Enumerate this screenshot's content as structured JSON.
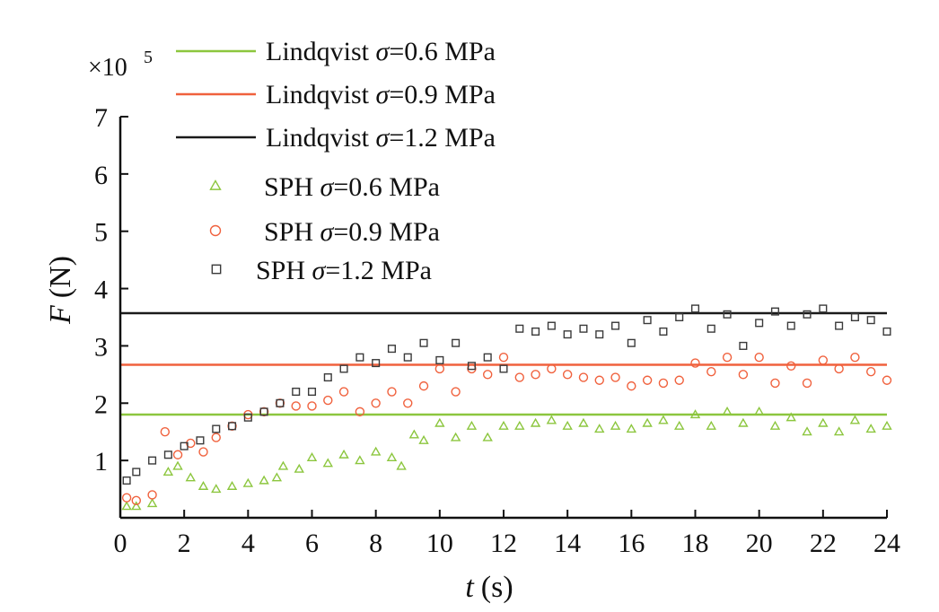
{
  "chart_data": {
    "type": "scatter",
    "xlabel": {
      "symbol": "t",
      "unit": "(s)"
    },
    "ylabel": {
      "symbol": "F",
      "unit": "(N)"
    },
    "y_multiplier": {
      "base": "×10",
      "exp": "5"
    },
    "xlim": [
      0,
      24
    ],
    "ylim": [
      0,
      7
    ],
    "x_ticks": [
      0,
      2,
      4,
      6,
      8,
      10,
      12,
      14,
      16,
      18,
      20,
      22,
      24
    ],
    "y_ticks": [
      1,
      2,
      3,
      4,
      5,
      6,
      7
    ],
    "y_unit_scale": 100000,
    "grid": false,
    "legend_position": "top-left",
    "lines": [
      {
        "label": {
          "prefix": "Lindqvist ",
          "sym": "σ",
          "rest": "=0.6  MPa"
        },
        "color": "#8cc63e",
        "y": 1.8
      },
      {
        "label": {
          "prefix": "Lindqvist ",
          "sym": "σ",
          "rest": "=0.9  MPa"
        },
        "color": "#f0613d",
        "y": 2.67
      },
      {
        "label": {
          "prefix": "Lindqvist ",
          "sym": "σ",
          "rest": "=1.2  MPa"
        },
        "color": "#1a1a1a",
        "y": 3.57
      }
    ],
    "series": [
      {
        "label": {
          "prefix": "SPH ",
          "sym": "σ",
          "rest": "=0.6 MPa"
        },
        "marker": "triangle",
        "color": "#8cc63e",
        "x": [
          0.2,
          0.5,
          1.0,
          1.5,
          1.8,
          2.2,
          2.6,
          3.0,
          3.5,
          4.0,
          4.5,
          4.9,
          5.1,
          5.6,
          6.0,
          6.5,
          7.0,
          7.5,
          8.0,
          8.5,
          8.8,
          9.2,
          9.5,
          10.0,
          10.5,
          11.0,
          11.5,
          12.0,
          12.5,
          13.0,
          13.5,
          14.0,
          14.5,
          15.0,
          15.5,
          16.0,
          16.5,
          17.0,
          17.5,
          18.0,
          18.5,
          19.0,
          19.5,
          20.0,
          20.5,
          21.0,
          21.5,
          22.0,
          22.5,
          23.0,
          23.5,
          24.0
        ],
        "y": [
          0.2,
          0.2,
          0.25,
          0.8,
          0.9,
          0.7,
          0.55,
          0.5,
          0.55,
          0.6,
          0.65,
          0.7,
          0.9,
          0.85,
          1.05,
          0.95,
          1.1,
          1.0,
          1.15,
          1.05,
          0.9,
          1.45,
          1.35,
          1.65,
          1.4,
          1.6,
          1.4,
          1.6,
          1.6,
          1.65,
          1.7,
          1.6,
          1.65,
          1.55,
          1.6,
          1.55,
          1.65,
          1.7,
          1.6,
          1.8,
          1.6,
          1.85,
          1.65,
          1.85,
          1.6,
          1.75,
          1.5,
          1.65,
          1.5,
          1.7,
          1.55,
          1.6
        ]
      },
      {
        "label": {
          "prefix": "SPH ",
          "sym": "σ",
          "rest": "=0.9 MPa"
        },
        "marker": "circle",
        "color": "#f0613d",
        "x": [
          0.2,
          0.5,
          1.0,
          1.4,
          1.8,
          2.2,
          2.6,
          3.0,
          3.5,
          4.0,
          4.5,
          5.0,
          5.5,
          6.0,
          6.5,
          7.0,
          7.5,
          8.0,
          8.5,
          9.0,
          9.5,
          10.0,
          10.5,
          11.0,
          11.5,
          12.0,
          12.5,
          13.0,
          13.5,
          14.0,
          14.5,
          15.0,
          15.5,
          16.0,
          16.5,
          17.0,
          17.5,
          18.0,
          18.5,
          19.0,
          19.5,
          20.0,
          20.5,
          21.0,
          21.5,
          22.0,
          22.5,
          23.0,
          23.5,
          24.0
        ],
        "y": [
          0.35,
          0.3,
          0.4,
          1.5,
          1.1,
          1.3,
          1.15,
          1.4,
          1.6,
          1.8,
          1.85,
          2.0,
          1.95,
          1.95,
          2.05,
          2.2,
          1.85,
          2.0,
          2.2,
          2.0,
          2.3,
          2.6,
          2.2,
          2.6,
          2.5,
          2.8,
          2.45,
          2.5,
          2.6,
          2.5,
          2.45,
          2.4,
          2.45,
          2.3,
          2.4,
          2.35,
          2.4,
          2.7,
          2.55,
          2.8,
          2.5,
          2.8,
          2.35,
          2.65,
          2.35,
          2.75,
          2.6,
          2.8,
          2.55,
          2.4
        ]
      },
      {
        "label": {
          "prefix": "SPH ",
          "sym": "σ",
          "rest": "=1.2 MPa"
        },
        "marker": "square",
        "color": "#3a3a3a",
        "x": [
          0.2,
          0.5,
          1.0,
          1.5,
          2.0,
          2.5,
          3.0,
          3.5,
          4.0,
          4.5,
          5.0,
          5.5,
          6.0,
          6.5,
          7.0,
          7.5,
          8.0,
          8.5,
          9.0,
          9.5,
          10.0,
          10.5,
          11.0,
          11.5,
          12.0,
          12.5,
          13.0,
          13.5,
          14.0,
          14.5,
          15.0,
          15.5,
          16.0,
          16.5,
          17.0,
          17.5,
          18.0,
          18.5,
          19.0,
          19.5,
          20.0,
          20.5,
          21.0,
          21.5,
          22.0,
          22.5,
          23.0,
          23.5,
          24.0
        ],
        "y": [
          0.65,
          0.8,
          1.0,
          1.1,
          1.25,
          1.35,
          1.55,
          1.6,
          1.75,
          1.85,
          2.0,
          2.2,
          2.2,
          2.45,
          2.6,
          2.8,
          2.7,
          2.95,
          2.8,
          3.05,
          2.75,
          3.05,
          2.65,
          2.8,
          2.6,
          3.3,
          3.25,
          3.35,
          3.2,
          3.3,
          3.2,
          3.35,
          3.05,
          3.45,
          3.25,
          3.5,
          3.65,
          3.3,
          3.55,
          3.0,
          3.4,
          3.6,
          3.35,
          3.55,
          3.65,
          3.35,
          3.5,
          3.45,
          3.25
        ]
      }
    ]
  }
}
